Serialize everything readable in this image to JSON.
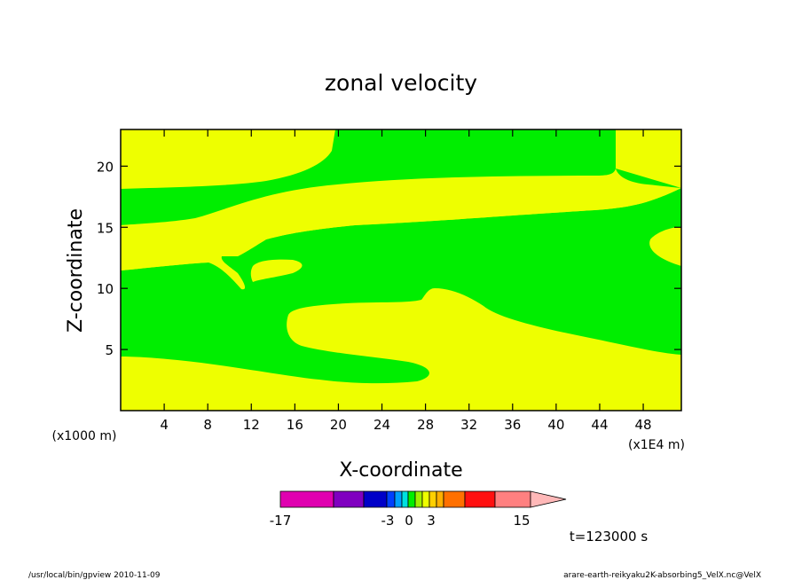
{
  "chart_data": {
    "type": "filled-contour",
    "title": "zonal velocity",
    "xlabel": "X-coordinate",
    "ylabel": "Z-coordinate",
    "x_unit_label": "(x1E4 m)",
    "y_unit_label": "(x1000 m)",
    "xlim": [
      0,
      51.5
    ],
    "ylim": [
      0,
      23
    ],
    "xticks": [
      4,
      8,
      12,
      16,
      20,
      24,
      28,
      32,
      36,
      40,
      44,
      48
    ],
    "yticks": [
      5,
      10,
      15,
      20
    ],
    "fill_colors": {
      "positive_0_3": "#eeff00",
      "negative_-3_0": "#00ee00"
    },
    "colorbar": {
      "levels_labels": [
        "-17",
        "-3",
        "0",
        "3",
        "15"
      ],
      "segments": [
        "#e000b0",
        "#8000c0",
        "#0000c8",
        "#0040ff",
        "#00a0ff",
        "#00e0e0",
        "#00ee00",
        "#a0f000",
        "#eeff00",
        "#ffd000",
        "#ffb000",
        "#ff7000",
        "#ff1010",
        "#ff8080",
        "#ffb8b8"
      ]
    },
    "time_label": "t=123000 s",
    "footer_left": "/usr/local/bin/gpview  2010-11-09",
    "footer_right": "arare-earth-reikyaku2K-absorbing5_VelX.nc@VelX"
  }
}
